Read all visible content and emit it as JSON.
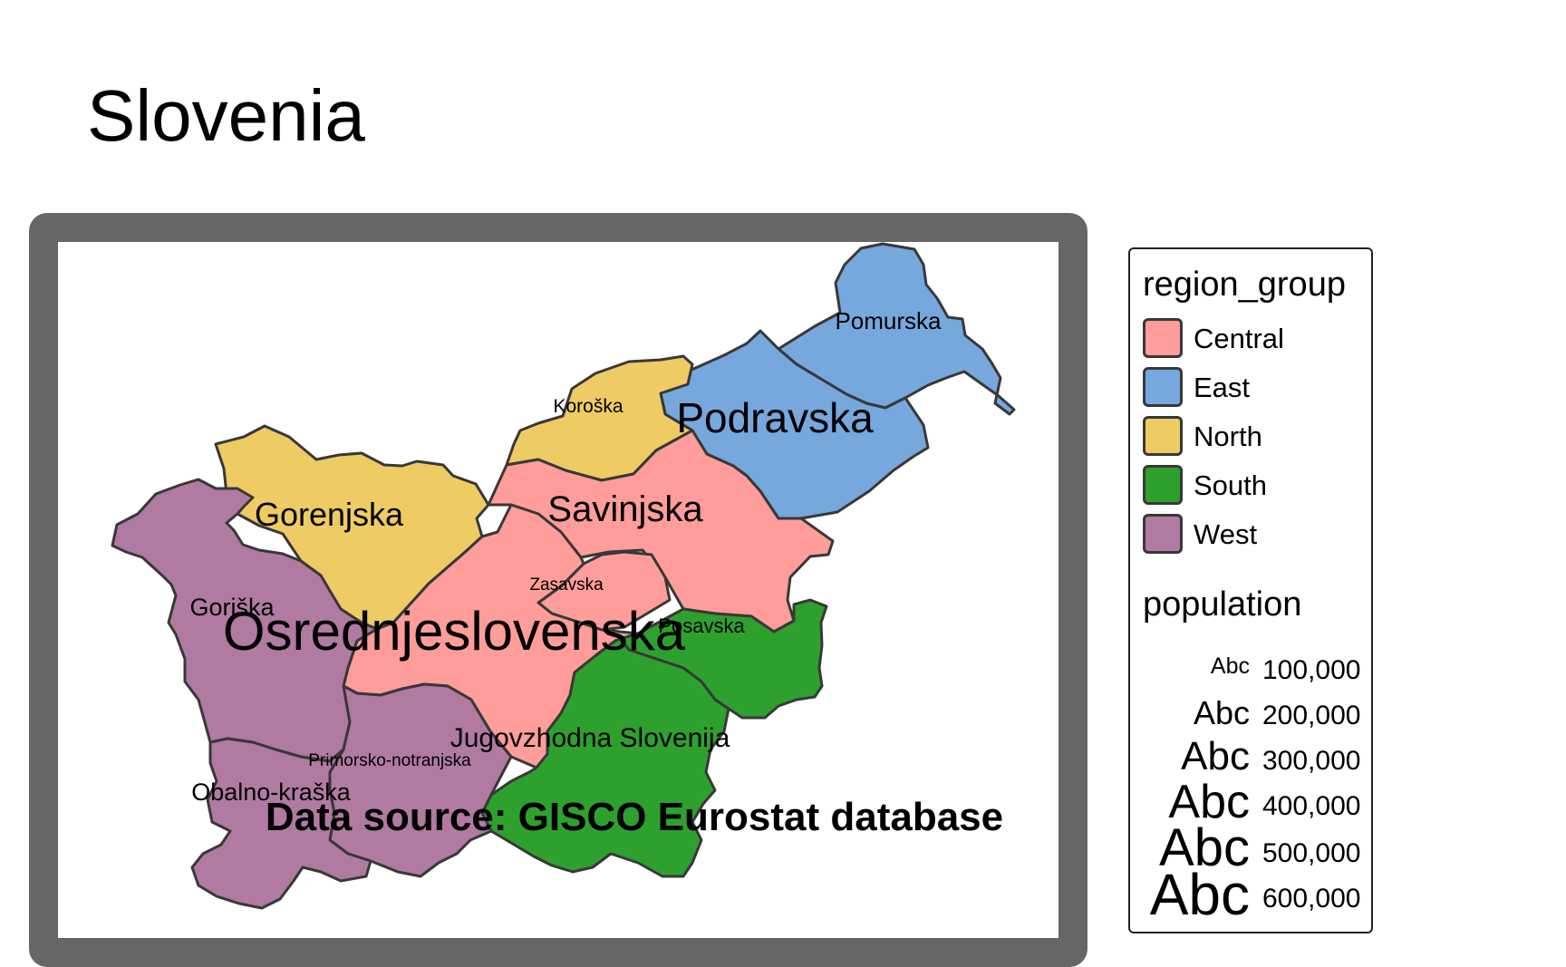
{
  "title": "Slovenia",
  "caption": "Data source: GISCO Eurostat database",
  "group_colors": {
    "Central": "#ff9d9a",
    "East": "#76a7dd",
    "North": "#eecb63",
    "South": "#2ea02e",
    "West": "#b07aa1"
  },
  "regions": [
    {
      "name": "Pomurska",
      "group": "East",
      "population": 114000
    },
    {
      "name": "Podravska",
      "group": "East",
      "population": 325000
    },
    {
      "name": "Koroška",
      "group": "North",
      "population": 71000
    },
    {
      "name": "Gorenjska",
      "group": "North",
      "population": 206000
    },
    {
      "name": "Savinjska",
      "group": "Central",
      "population": 258000
    },
    {
      "name": "Zasavska",
      "group": "Central",
      "population": 57000
    },
    {
      "name": "Osrednjeslovenska",
      "group": "Central",
      "population": 555000
    },
    {
      "name": "Posavska",
      "group": "South",
      "population": 76000
    },
    {
      "name": "Jugovzhodna Slovenija",
      "group": "South",
      "population": 145000
    },
    {
      "name": "Goriška",
      "group": "West",
      "population": 118000
    },
    {
      "name": "Primorsko-notranjska",
      "group": "West",
      "population": 53000
    },
    {
      "name": "Obalno-kraška",
      "group": "West",
      "population": 116000
    }
  ],
  "legend": {
    "color_title": "region_group",
    "color_items": [
      "Central",
      "East",
      "North",
      "South",
      "West"
    ],
    "size_title": "population",
    "size_sample": "Abc",
    "size_items": [
      {
        "value": 100000,
        "label": "100,000"
      },
      {
        "value": 200000,
        "label": "200,000"
      },
      {
        "value": 300000,
        "label": "300,000"
      },
      {
        "value": 400000,
        "label": "400,000"
      },
      {
        "value": 500000,
        "label": "500,000"
      },
      {
        "value": 600000,
        "label": "600,000"
      }
    ]
  }
}
